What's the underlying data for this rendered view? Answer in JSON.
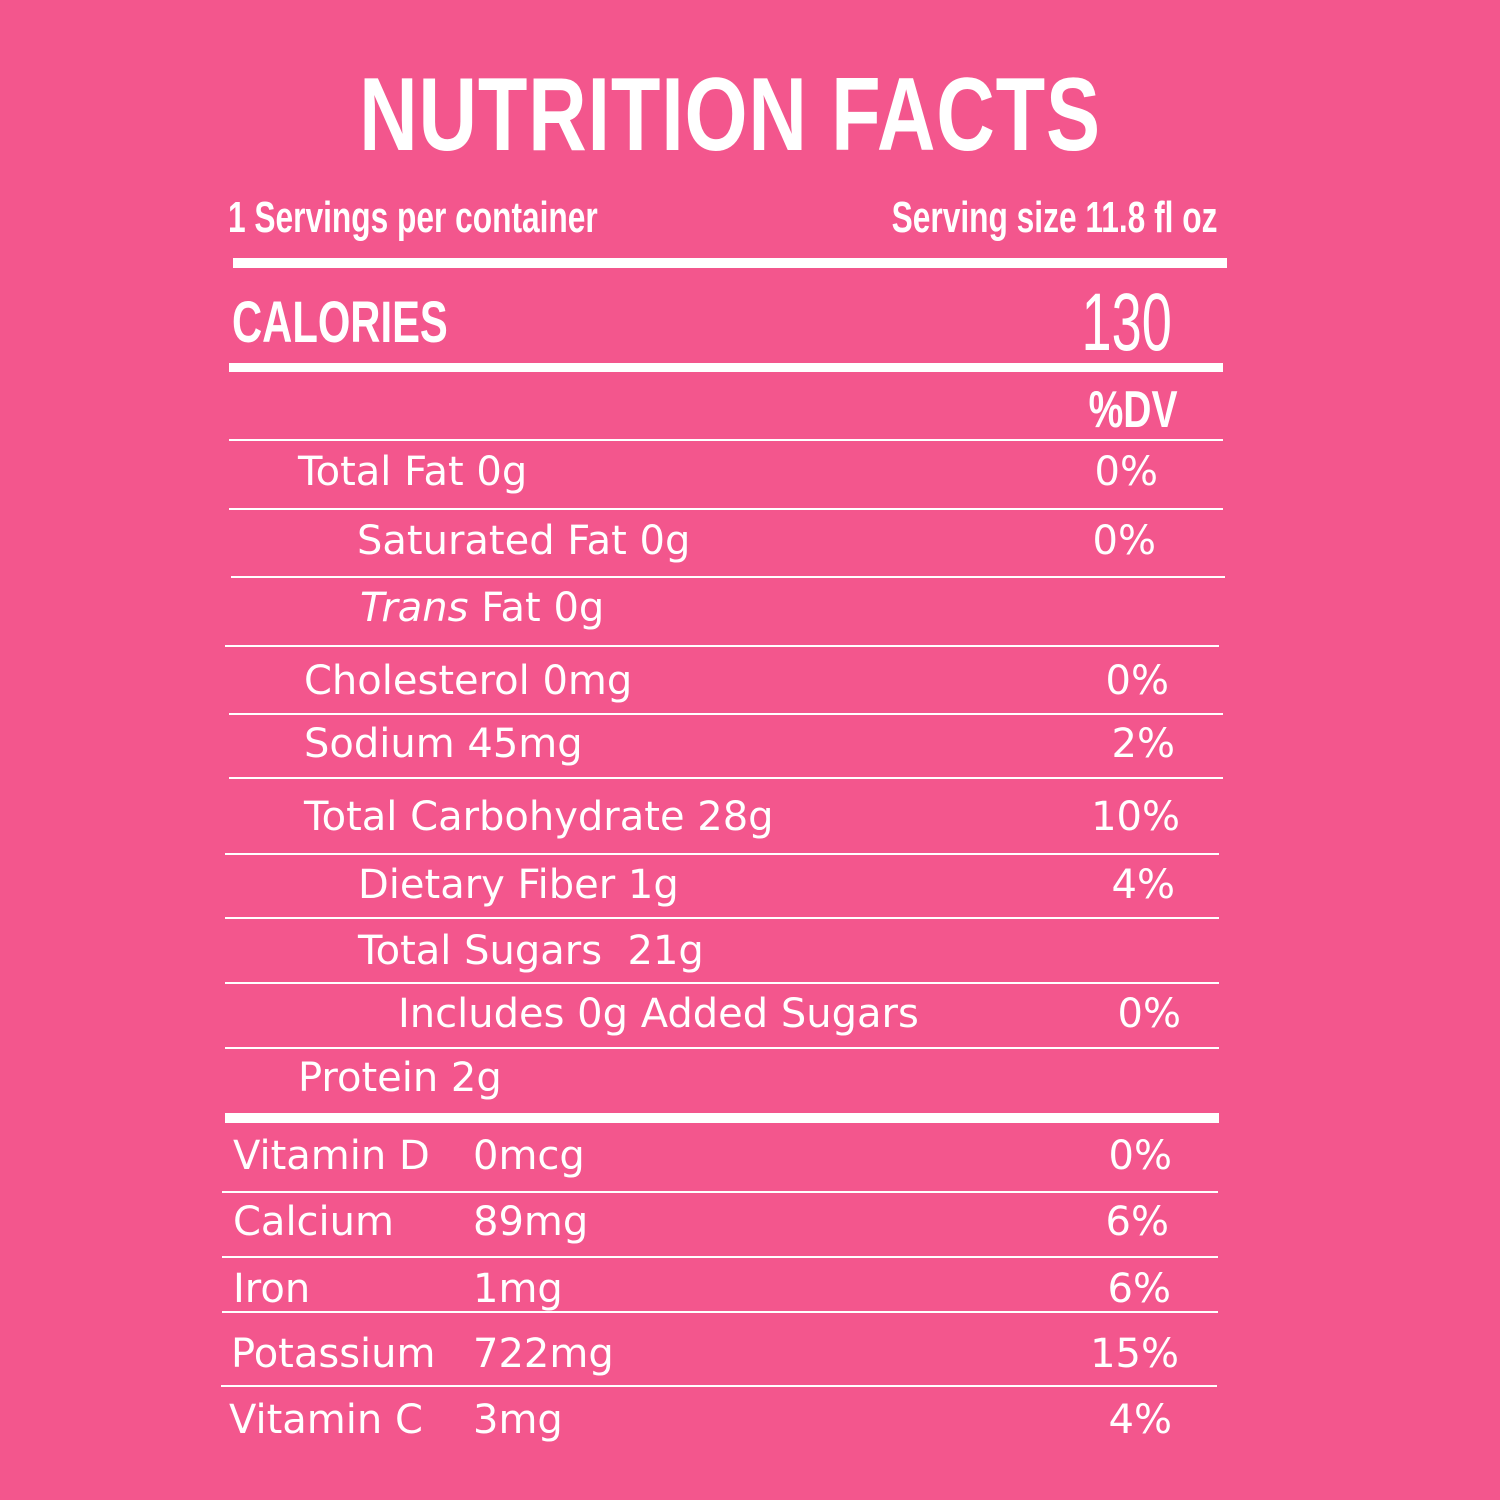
{
  "title": "NUTRITION FACTS",
  "servings_per_container": "1 Servings per container",
  "serving_size": "Serving size 11.8 fl oz",
  "calories": {
    "label": "CALORIES",
    "value": "130"
  },
  "dv_header": "%DV",
  "nutrients": [
    {
      "name": "Total Fat 0g",
      "dv": "0%"
    },
    {
      "name": "Saturated Fat 0g",
      "dv": "0%"
    },
    {
      "name_italic": "Trans",
      "name_rest": " Fat 0g",
      "dv": ""
    },
    {
      "name": "Cholesterol 0mg",
      "dv": "0%"
    },
    {
      "name": "Sodium 45mg",
      "dv": "2%"
    },
    {
      "name": "Total Carbohydrate 28g",
      "dv": "10%"
    },
    {
      "name": "Dietary Fiber 1g",
      "dv": "4%"
    },
    {
      "name": "Total Sugars  21g",
      "dv": ""
    },
    {
      "name": "Includes 0g Added Sugars",
      "dv": "0%"
    },
    {
      "name": "Protein 2g",
      "dv": ""
    }
  ],
  "vitamins": [
    {
      "name": "Vitamin D",
      "amount": "0mcg",
      "dv": "0%"
    },
    {
      "name": "Calcium",
      "amount": "89mg",
      "dv": "6%"
    },
    {
      "name": "Iron",
      "amount": "1mg",
      "dv": "6%"
    },
    {
      "name": "Potassium",
      "amount": "722mg",
      "dv": "15%"
    },
    {
      "name": "Vitamin C",
      "amount": "3mg",
      "dv": "4%"
    }
  ]
}
